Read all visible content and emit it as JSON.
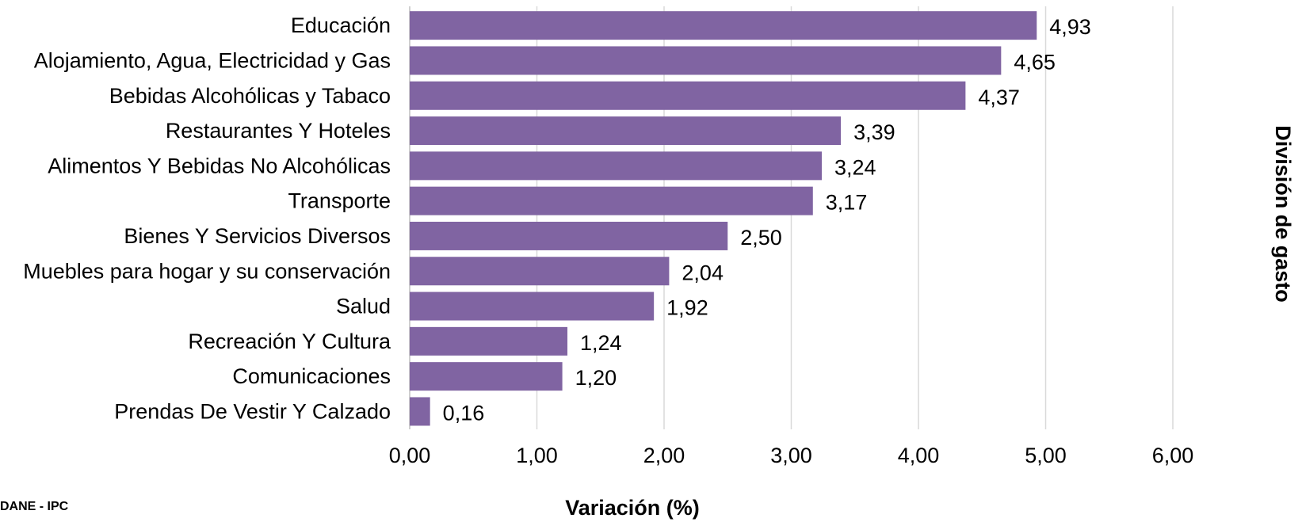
{
  "chart_data": {
    "type": "bar",
    "orientation": "horizontal",
    "categories": [
      "Educación",
      "Alojamiento, Agua, Electricidad y Gas",
      "Bebidas Alcohólicas y Tabaco",
      "Restaurantes Y Hoteles",
      "Alimentos Y Bebidas No Alcohólicas",
      "Transporte",
      "Bienes Y Servicios Diversos",
      "Muebles para hogar y su conservación",
      "Salud",
      "Recreación Y Cultura",
      "Comunicaciones",
      "Prendas De Vestir Y Calzado"
    ],
    "values": [
      4.93,
      4.65,
      4.37,
      3.39,
      3.24,
      3.17,
      2.5,
      2.04,
      1.92,
      1.24,
      1.2,
      0.16
    ],
    "value_labels": [
      "4,93",
      "4,65",
      "4,37",
      "3,39",
      "3,24",
      "3,17",
      "2,50",
      "2,04",
      "1,92",
      "1,24",
      "1,20",
      "0,16"
    ],
    "xlim": [
      0,
      6
    ],
    "x_ticks": [
      0,
      1,
      2,
      3,
      4,
      5,
      6
    ],
    "x_tick_labels": [
      "0,00",
      "1,00",
      "2,00",
      "3,00",
      "4,00",
      "5,00",
      "6,00"
    ],
    "xlabel": "Variación (%)",
    "ylabel": "División de gasto",
    "grid": "vertical",
    "bar_color": "#8064a2",
    "gridline_color": "#d9d9d9"
  },
  "source_note": "DANE - IPC"
}
